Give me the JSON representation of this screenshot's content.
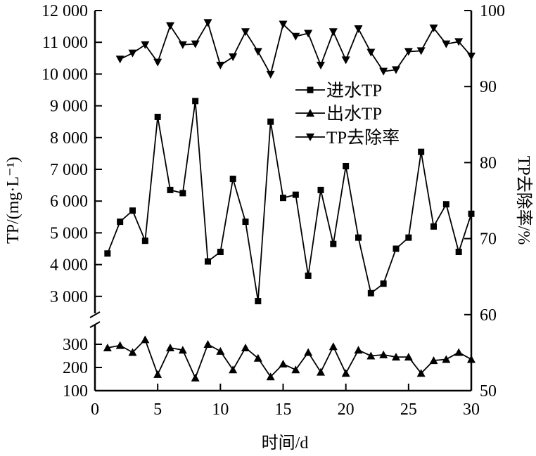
{
  "chart_data": {
    "type": "line",
    "title": "",
    "xlabel": "时间/d",
    "ylabel_left": "TP/(mg·L⁻¹)",
    "ylabel_right": "TP去除率/%",
    "xlim": [
      0,
      30
    ],
    "xticks": [
      0,
      5,
      10,
      15,
      20,
      25,
      30
    ],
    "ylim_left_upper": [
      2600,
      12000
    ],
    "yticks_left_upper": [
      {
        "v": 3000,
        "t": "3 000"
      },
      {
        "v": 4000,
        "t": "4 000"
      },
      {
        "v": 5000,
        "t": "5 000"
      },
      {
        "v": 6000,
        "t": "6 000"
      },
      {
        "v": 7000,
        "t": "7 000"
      },
      {
        "v": 8000,
        "t": "8 000"
      },
      {
        "v": 9000,
        "t": "9 000"
      },
      {
        "v": 10000,
        "t": "10 000"
      },
      {
        "v": 11000,
        "t": "11 000"
      },
      {
        "v": 12000,
        "t": "12 000"
      }
    ],
    "ylim_left_lower": [
      100,
      400
    ],
    "yticks_left_lower": [
      {
        "v": 100,
        "t": "100"
      },
      {
        "v": 200,
        "t": "200"
      },
      {
        "v": 300,
        "t": "300"
      }
    ],
    "left_axis_broken": true,
    "ylim_right": [
      50,
      100
    ],
    "yticks_right": [
      50,
      60,
      70,
      80,
      90,
      100
    ],
    "grid": false,
    "legend_placement": "center",
    "series": [
      {
        "name": "进水TP",
        "axis": "left-upper",
        "marker": "square",
        "x": [
          1,
          2,
          3,
          4,
          5,
          6,
          7,
          8,
          9,
          10,
          11,
          12,
          13,
          14,
          15,
          16,
          17,
          18,
          19,
          20,
          21,
          22,
          23,
          24,
          25,
          26,
          27,
          28,
          29,
          30
        ],
        "values": [
          4350,
          5350,
          5700,
          4750,
          8650,
          6350,
          6250,
          9150,
          4100,
          4400,
          6700,
          5350,
          2850,
          8500,
          6100,
          6200,
          3650,
          6350,
          4650,
          7100,
          4850,
          3100,
          3400,
          4500,
          4850,
          7550,
          5200,
          5900,
          4400,
          5600
        ]
      },
      {
        "name": "出水TP",
        "axis": "left-lower",
        "marker": "triangle-up",
        "x": [
          1,
          2,
          3,
          4,
          5,
          6,
          7,
          8,
          9,
          10,
          11,
          12,
          13,
          14,
          15,
          16,
          17,
          18,
          19,
          20,
          21,
          22,
          23,
          24,
          25,
          26,
          27,
          28,
          29,
          30
        ],
        "values": [
          285,
          295,
          265,
          320,
          170,
          285,
          275,
          155,
          300,
          270,
          190,
          285,
          240,
          160,
          215,
          190,
          265,
          180,
          290,
          175,
          275,
          250,
          255,
          245,
          245,
          175,
          230,
          235,
          265,
          235
        ]
      },
      {
        "name": "TP去除率",
        "axis": "right",
        "marker": "triangle-down",
        "x": [
          2,
          3,
          4,
          5,
          6,
          7,
          8,
          9,
          10,
          11,
          12,
          13,
          14,
          15,
          16,
          17,
          18,
          19,
          20,
          21,
          22,
          23,
          24,
          25,
          26,
          27,
          28,
          29,
          30
        ],
        "values": [
          93.6,
          94.4,
          95.5,
          93.2,
          98.0,
          95.5,
          95.6,
          98.4,
          92.8,
          93.9,
          97.2,
          94.6,
          91.6,
          98.2,
          96.6,
          97.0,
          92.8,
          97.2,
          93.5,
          97.6,
          94.5,
          92.0,
          92.2,
          94.6,
          94.7,
          97.7,
          95.6,
          95.9,
          94.0
        ]
      }
    ]
  }
}
